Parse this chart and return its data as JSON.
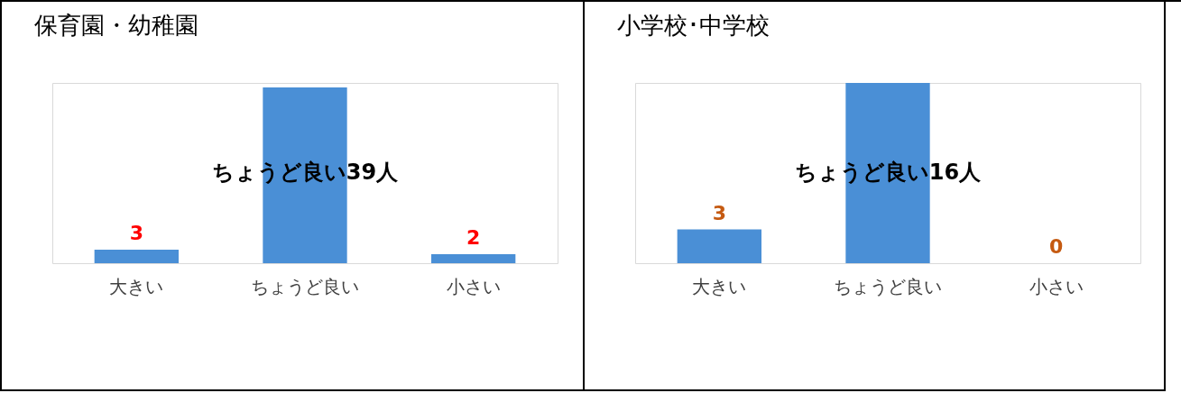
{
  "chart_data": [
    {
      "type": "bar",
      "title": "保育園・幼稚園",
      "categories": [
        "大きい",
        "ちょうど良い",
        "小さい"
      ],
      "values": [
        3,
        39,
        2
      ],
      "value_labels": [
        "3",
        null,
        "2"
      ],
      "color": "#4a8fd6",
      "annotations": [
        "ちょうど良い39人"
      ]
    },
    {
      "type": "bar",
      "title": "小学校･中学校",
      "categories": [
        "大きい",
        "ちょうど良い",
        "小さい"
      ],
      "values": [
        3,
        16,
        0
      ],
      "value_labels": [
        "3",
        null,
        "0"
      ],
      "color": "#4a8fd6",
      "annotations": [
        "ちょうど良い16人"
      ]
    }
  ]
}
